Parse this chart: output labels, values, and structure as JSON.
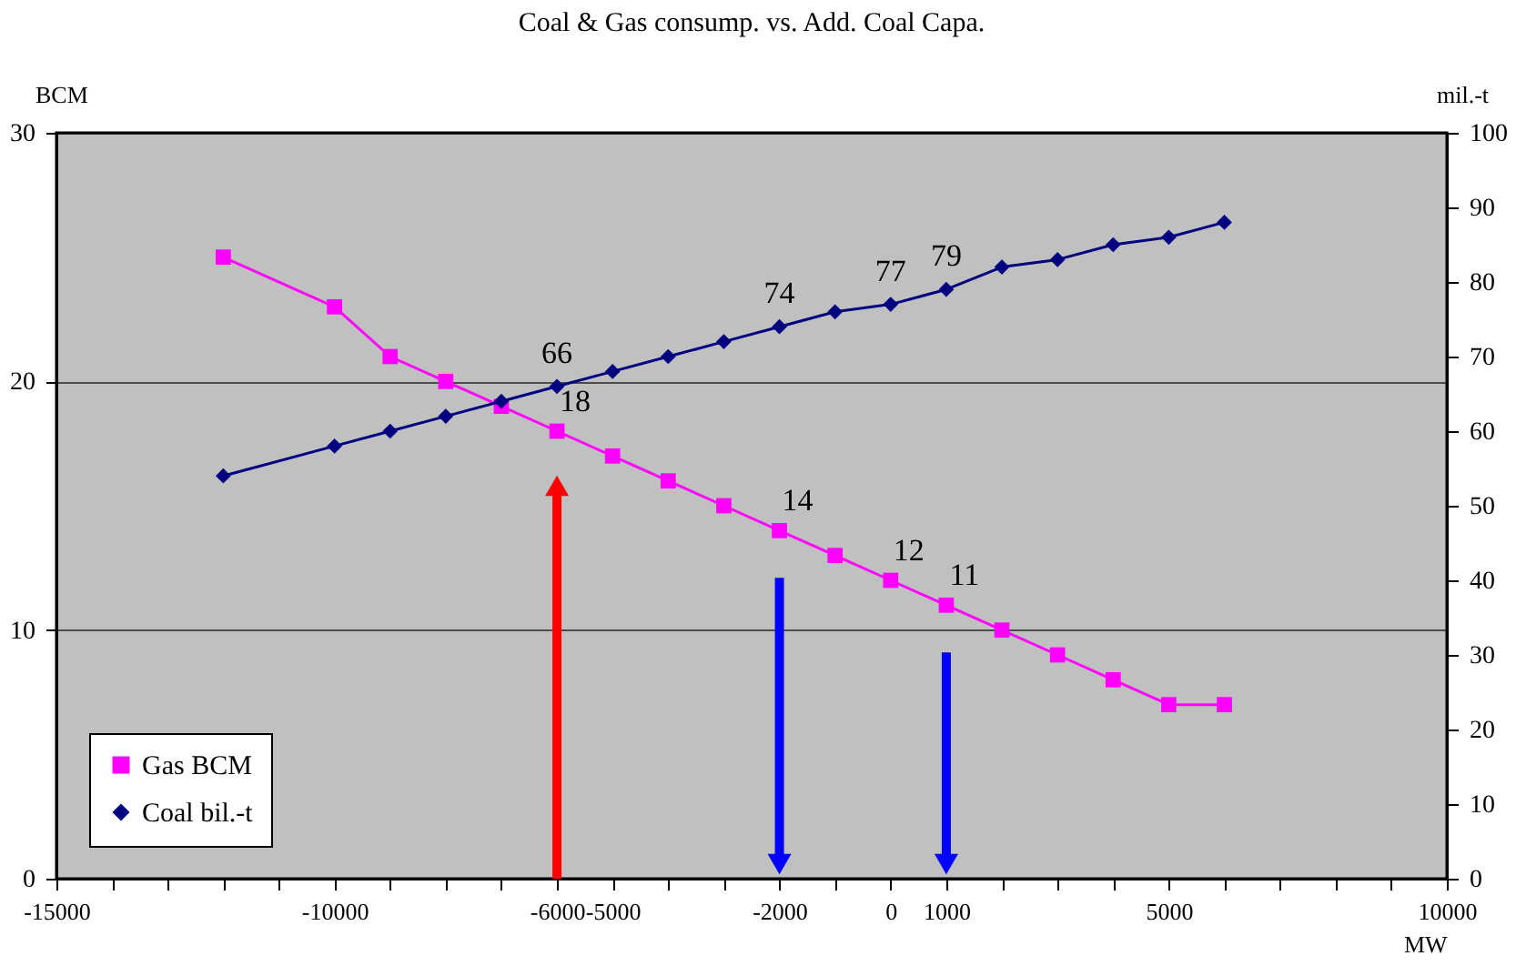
{
  "chart_data": {
    "type": "line",
    "title": "Coal & Gas consump. vs. Add. Coal Capa.",
    "xlabel": "MW",
    "ylabel": "BCM",
    "y2label": "mil.-t",
    "x": [
      -12000,
      -10000,
      -9000,
      -8000,
      -7000,
      -6000,
      -5000,
      -4000,
      -3000,
      -2000,
      -1000,
      0,
      1000,
      2000,
      3000,
      4000,
      5000,
      6000
    ],
    "series": [
      {
        "name": "Gas BCM",
        "color": "#ff00ff",
        "marker": "square",
        "values": [
          25,
          23,
          21,
          20,
          19,
          18,
          17,
          16,
          15,
          14,
          13,
          12,
          11,
          10,
          9,
          8,
          7,
          7
        ],
        "value_labels": [
          null,
          null,
          null,
          null,
          null,
          "18",
          null,
          null,
          null,
          "14",
          null,
          "12",
          "11",
          null,
          null,
          null,
          null,
          null
        ]
      },
      {
        "name": "Coal bil.-t",
        "color": "#000080",
        "marker": "diamond",
        "axis": "y2",
        "values": [
          54,
          58,
          60,
          62,
          64,
          66,
          68,
          70,
          72,
          74,
          76,
          77,
          79,
          82,
          83,
          85,
          86,
          88
        ],
        "value_labels": [
          null,
          null,
          null,
          null,
          null,
          "66",
          null,
          null,
          null,
          "74",
          null,
          "77",
          "79",
          null,
          null,
          null,
          null,
          null
        ]
      }
    ],
    "xlim": [
      -15000,
      10000
    ],
    "xticks": [
      -15000,
      {
        "value": -14000,
        "label": null
      },
      {
        "value": -13000,
        "label": null
      },
      {
        "value": -12000,
        "label": null
      },
      {
        "value": -11000,
        "label": null
      },
      -10000,
      {
        "value": -9000,
        "label": null
      },
      {
        "value": -8000,
        "label": null
      },
      {
        "value": -7000,
        "label": null
      },
      -6000,
      -5000,
      {
        "value": -4000,
        "label": null
      },
      {
        "value": -3000,
        "label": null
      },
      -2000,
      {
        "value": -1000,
        "label": null
      },
      0,
      1000,
      {
        "value": 2000,
        "label": null
      },
      {
        "value": 3000,
        "label": null
      },
      {
        "value": 4000,
        "label": null
      },
      5000,
      {
        "value": 6000,
        "label": null
      },
      {
        "value": 7000,
        "label": null
      },
      {
        "value": 8000,
        "label": null
      },
      {
        "value": 9000,
        "label": null
      },
      10000
    ],
    "ylim": [
      0,
      30
    ],
    "yticks": [
      0,
      10,
      20,
      30
    ],
    "y2lim": [
      0,
      100
    ],
    "y2ticks": [
      0,
      10,
      20,
      30,
      40,
      50,
      60,
      70,
      80,
      90,
      100
    ],
    "grid": "y",
    "legend": "bottom left",
    "line_style": "solid"
  }
}
